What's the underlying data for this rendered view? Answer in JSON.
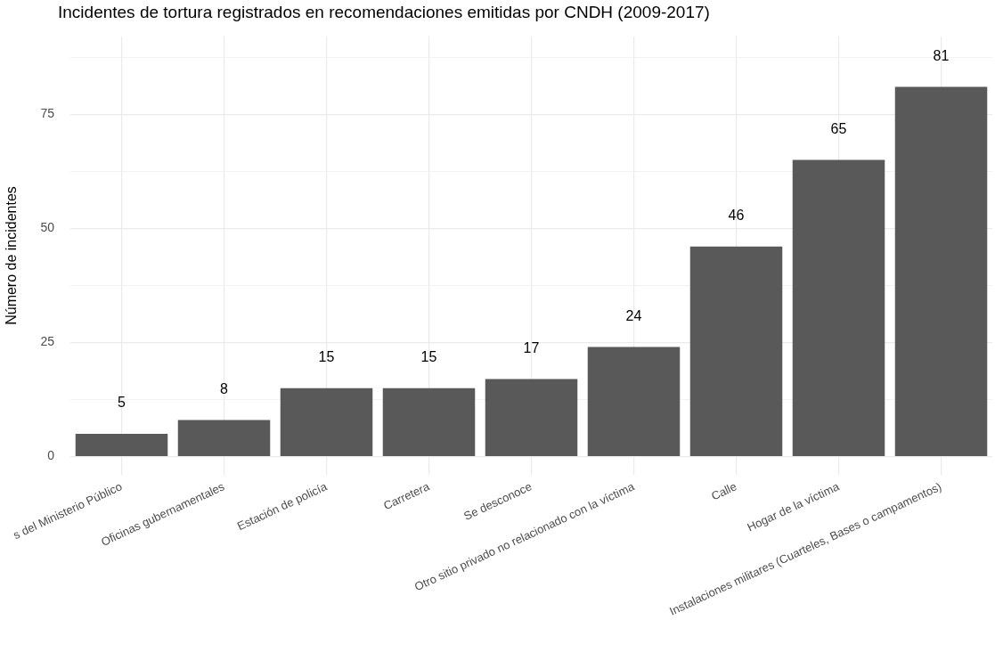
{
  "chart_data": {
    "type": "bar",
    "title": "Incidentes de tortura registrados en recomendaciones emitidas por CNDH (2009-2017)",
    "ylabel": "Número de incidentes",
    "categories": [
      "s del Ministerio Público",
      "Oficinas gubernamentales",
      "Estación de policía",
      "Carretera",
      "Se desconoce",
      "Otro sitio privado no relacionado con la víctima",
      "Calle",
      "Hogar de la víctima",
      "Instalaciones militares (Cuarteles, Bases o campamentos)"
    ],
    "values": [
      5,
      8,
      15,
      15,
      17,
      24,
      46,
      65,
      81
    ],
    "color": "#595959",
    "ylim": [
      -4,
      92
    ],
    "yticks": [
      0,
      {
        "value": 12.5,
        "label": null
      },
      25,
      {
        "value": 37.5,
        "label": null
      },
      50,
      {
        "value": 62.5,
        "label": null
      },
      75,
      {
        "value": 87.5,
        "label": null
      }
    ],
    "grid": true,
    "data_labels": true
  }
}
